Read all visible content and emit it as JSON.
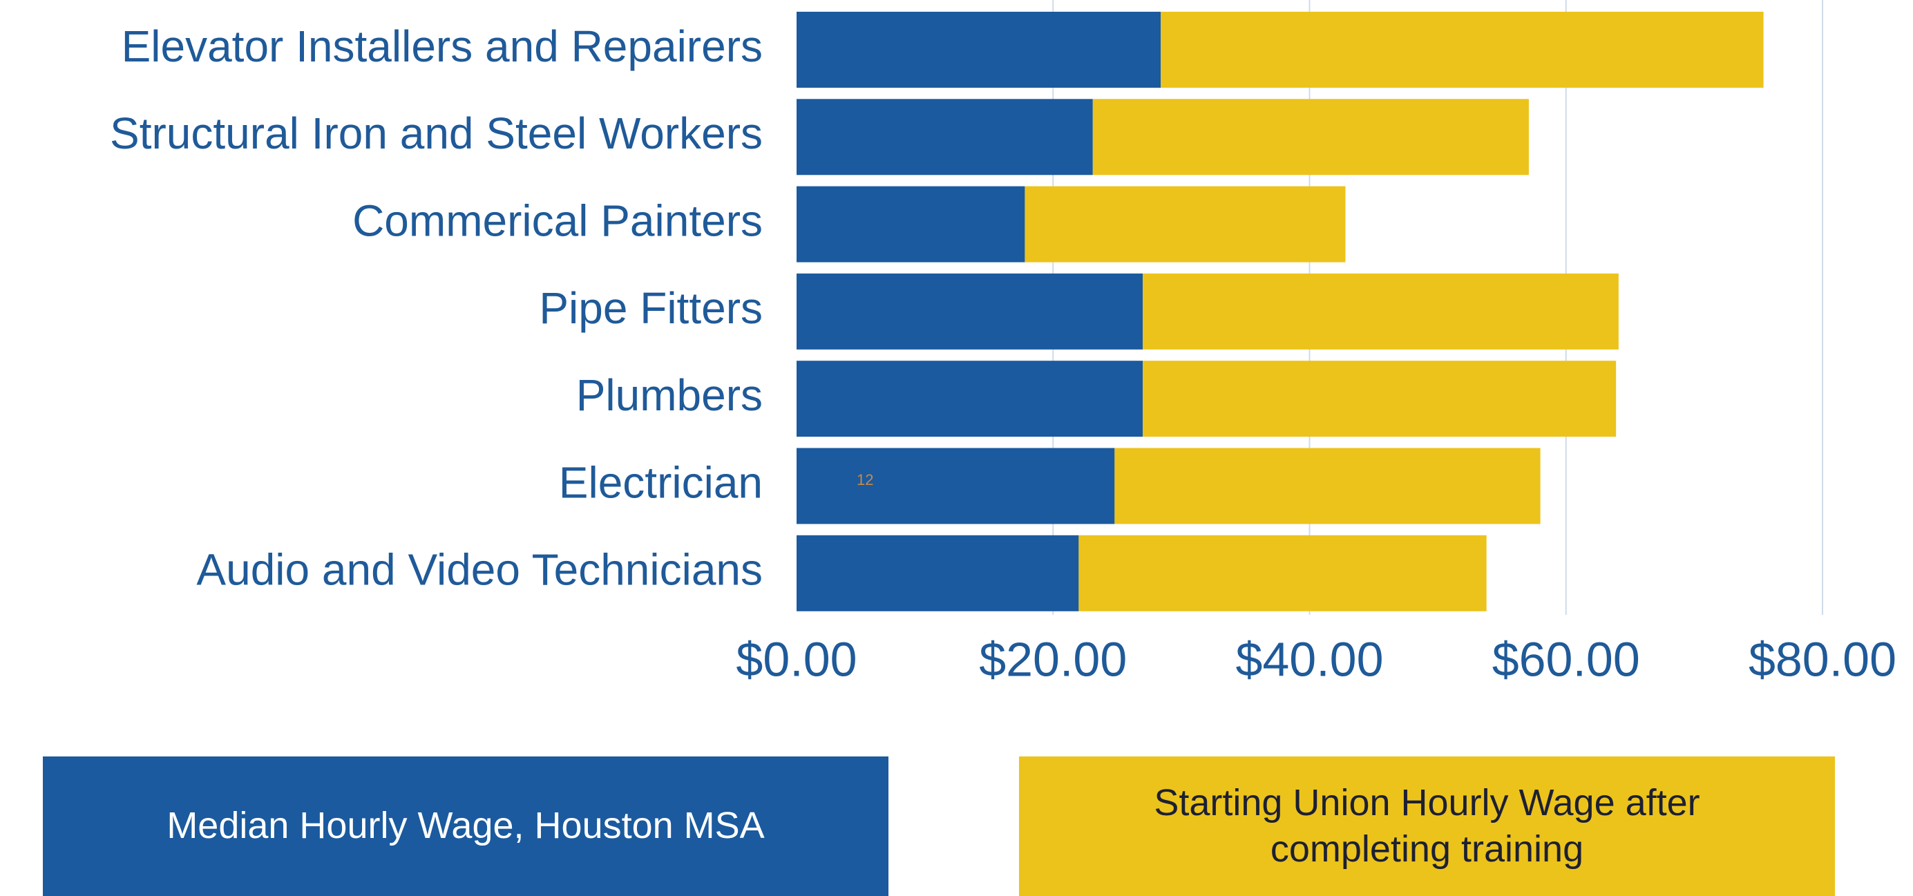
{
  "chart_data": {
    "type": "stacked-barh",
    "categories": [
      "Elevator Installers and Repairers",
      "Structural Iron and Steel Workers",
      "Commerical Painters",
      "Pipe Fitters",
      "Plumbers",
      "Electrician",
      "Audio and Video Technicians"
    ],
    "series": [
      {
        "name": "Median Hourly Wage, Houston MSA",
        "color": "#1b5a9e",
        "values": [
          28.4,
          23.1,
          17.8,
          27.0,
          27.0,
          24.8,
          22.0
        ]
      },
      {
        "name": "Starting Union  Hourly Wage after completing training",
        "color": "#ecc31b",
        "values": [
          47.0,
          34.0,
          25.0,
          37.1,
          36.9,
          33.2,
          31.8
        ]
      }
    ],
    "xlim": [
      0,
      80
    ],
    "xticks": [
      {
        "value": 0,
        "label": "$0.00"
      },
      {
        "value": 20,
        "label": "$20.00"
      },
      {
        "value": 40,
        "label": "$40.00"
      },
      {
        "value": 60,
        "label": "$60.00"
      },
      {
        "value": 80,
        "label": "$80.00"
      }
    ],
    "grid": true,
    "annotations": [
      "12"
    ]
  }
}
